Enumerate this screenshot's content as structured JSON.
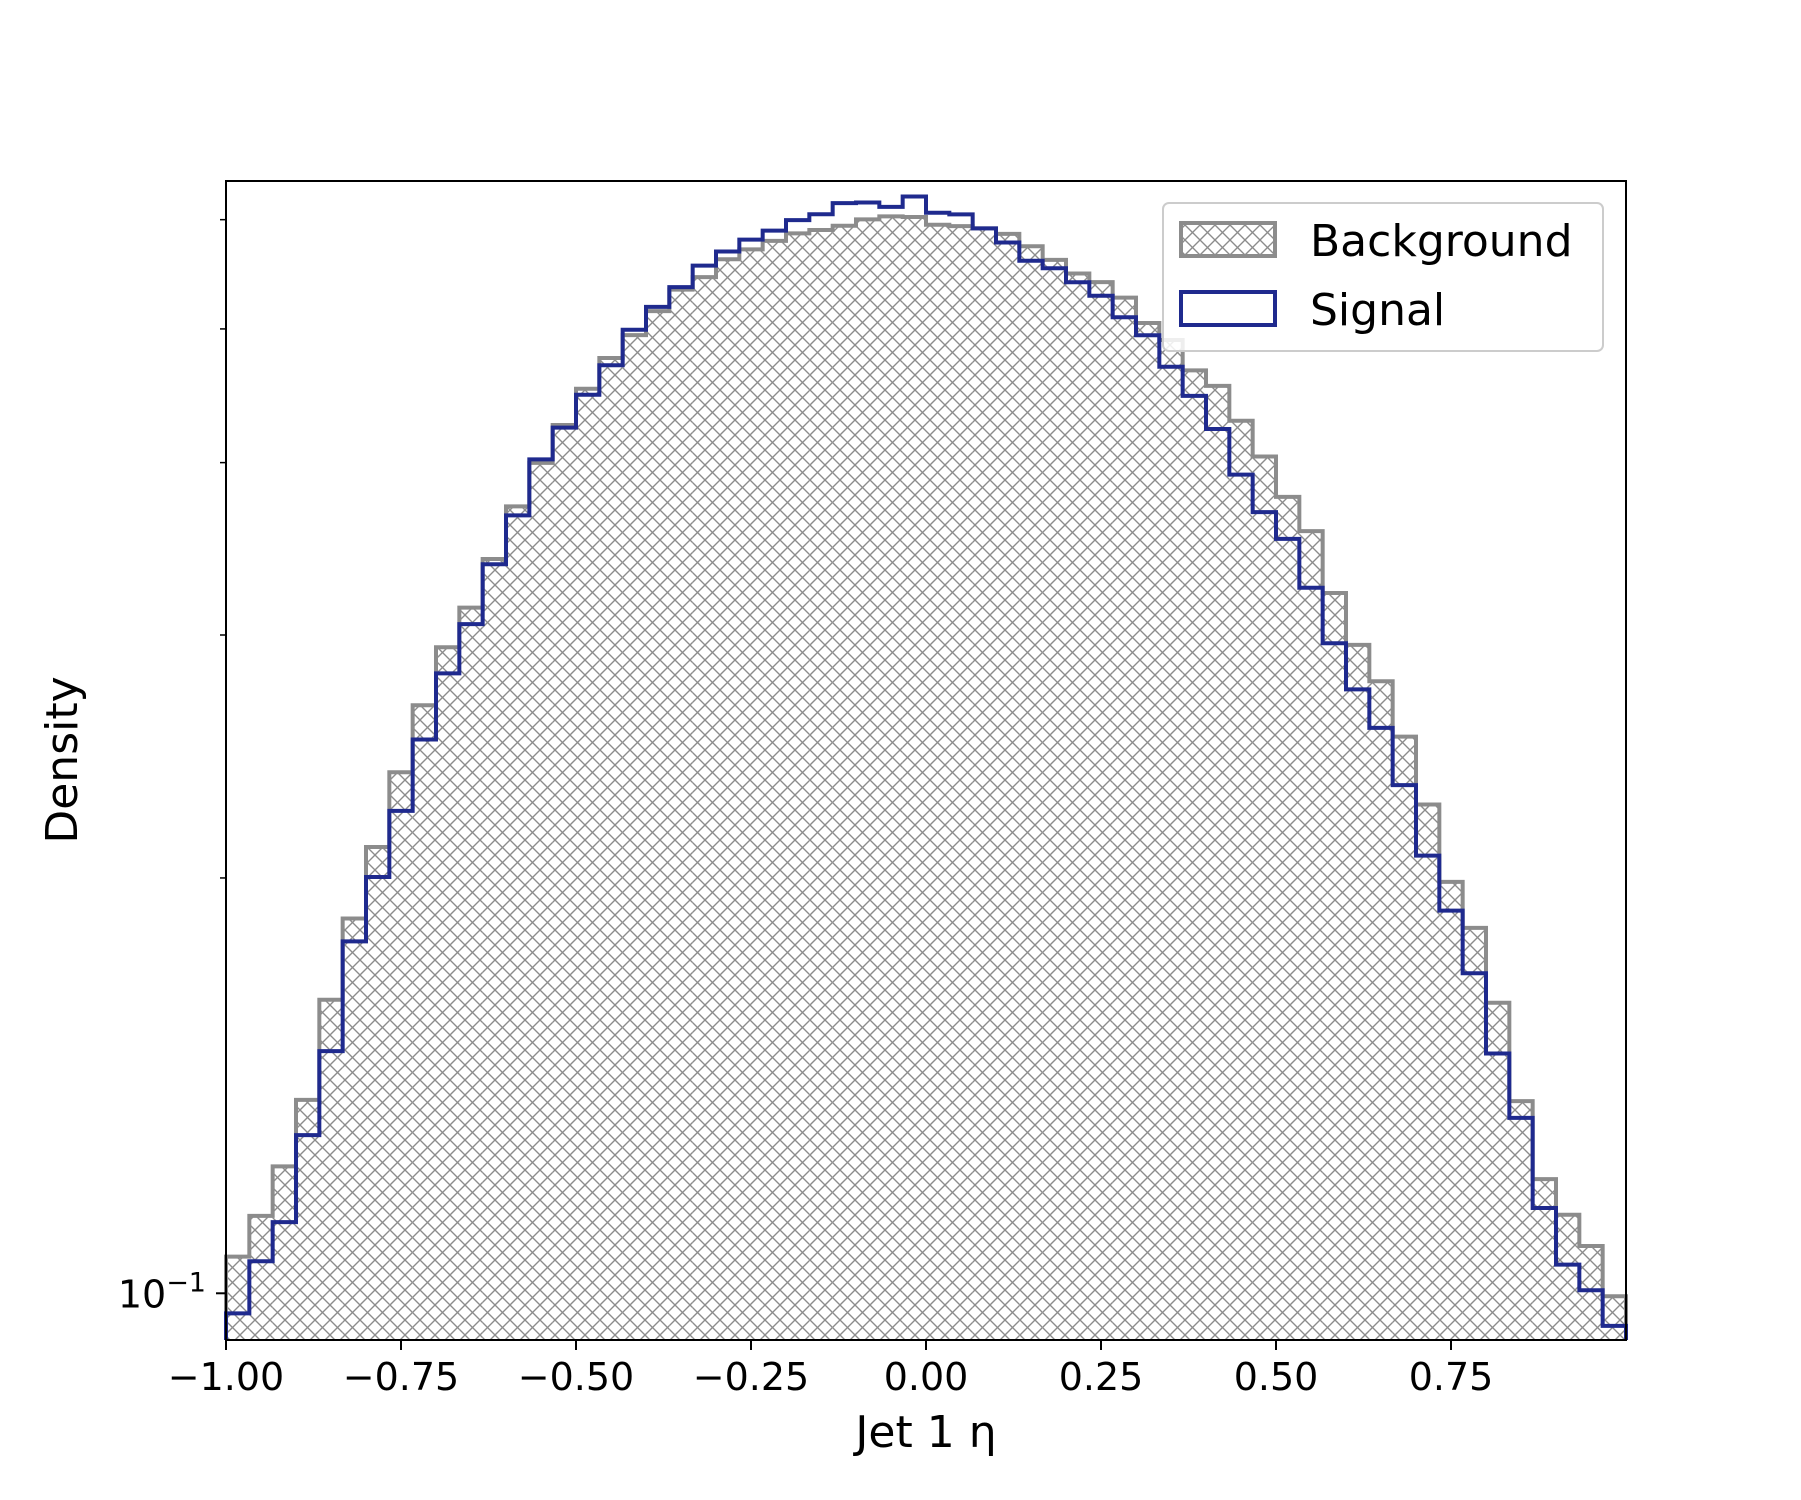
{
  "chart_data": {
    "type": "histogram",
    "xlabel": "Jet 1 η",
    "ylabel": "Density",
    "xlim": [
      -1.0,
      1.0
    ],
    "ylim": [
      0.0925,
      0.64
    ],
    "yscale": "log",
    "x_ticks": [
      {
        "value": -1.0,
        "label": "−1.00"
      },
      {
        "value": -0.75,
        "label": "−0.75"
      },
      {
        "value": -0.5,
        "label": "−0.50"
      },
      {
        "value": -0.25,
        "label": "−0.25"
      },
      {
        "value": 0.0,
        "label": "0.00"
      },
      {
        "value": 0.25,
        "label": "0.25"
      },
      {
        "value": 0.5,
        "label": "0.50"
      },
      {
        "value": 0.75,
        "label": "0.75"
      }
    ],
    "y_ticks": [
      {
        "base": "10",
        "exponent": "−1",
        "value": 0.1
      }
    ],
    "bin_edges_range": [
      -1.0,
      1.0
    ],
    "n_bins": 60,
    "grid": false,
    "legend_position": "upper right",
    "series": [
      {
        "name": "Background",
        "style": "hatched",
        "color": "#8c8c8c",
        "values": [
          0.1063,
          0.1138,
          0.1236,
          0.1381,
          0.1632,
          0.1869,
          0.2106,
          0.2386,
          0.2668,
          0.2939,
          0.314,
          0.3406,
          0.3718,
          0.3998,
          0.4259,
          0.4525,
          0.4763,
          0.4948,
          0.5151,
          0.5339,
          0.5451,
          0.5616,
          0.571,
          0.5791,
          0.5864,
          0.5898,
          0.5939,
          0.6003,
          0.6033,
          0.6027,
          0.595,
          0.5936,
          0.5914,
          0.586,
          0.574,
          0.5611,
          0.5485,
          0.5406,
          0.5268,
          0.505,
          0.4908,
          0.4666,
          0.4547,
          0.429,
          0.4041,
          0.3778,
          0.3568,
          0.3218,
          0.2951,
          0.2777,
          0.2532,
          0.2261,
          0.1987,
          0.184,
          0.1624,
          0.1378,
          0.121,
          0.114,
          0.1082,
          0.0995
        ]
      },
      {
        "name": "Signal",
        "style": "step",
        "color": "#1f2a8e",
        "values": [
          0.0967,
          0.1055,
          0.1126,
          0.1302,
          0.1498,
          0.1799,
          0.2003,
          0.2237,
          0.252,
          0.2814,
          0.3055,
          0.3376,
          0.3663,
          0.4022,
          0.4241,
          0.448,
          0.4706,
          0.4993,
          0.5187,
          0.5361,
          0.5557,
          0.5689,
          0.5803,
          0.5891,
          0.5996,
          0.6055,
          0.6168,
          0.6175,
          0.613,
          0.6236,
          0.607,
          0.6053,
          0.5913,
          0.5776,
          0.5602,
          0.5533,
          0.5405,
          0.5284,
          0.5098,
          0.4947,
          0.4694,
          0.4471,
          0.4231,
          0.3921,
          0.3683,
          0.3522,
          0.3246,
          0.2959,
          0.274,
          0.2569,
          0.2335,
          0.2076,
          0.1894,
          0.1706,
          0.1492,
          0.134,
          0.1153,
          0.1049,
          0.1005,
          0.0947
        ]
      }
    ]
  }
}
